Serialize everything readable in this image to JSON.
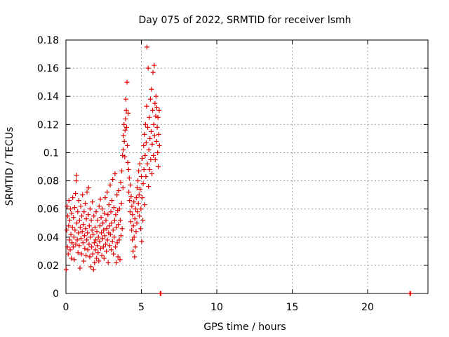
{
  "chart_data": {
    "type": "scatter",
    "title": "Day 075 of 2022, SRMTID for receiver lsmh",
    "xlabel": "GPS time / hours",
    "ylabel": "SRMTID / TECUs",
    "xlim": [
      0,
      24
    ],
    "ylim": [
      0,
      0.18
    ],
    "xticks": [
      0,
      5,
      10,
      15,
      20
    ],
    "xtick_labels": [
      "0",
      "5",
      "10",
      "15",
      "20"
    ],
    "yticks": [
      0,
      0.02,
      0.04,
      0.06,
      0.08,
      0.1,
      0.12,
      0.14,
      0.16,
      0.18
    ],
    "ytick_labels": [
      "0",
      "0.02",
      "0.04",
      "0.06",
      "0.08",
      "0.1",
      "0.12",
      "0.14",
      "0.16",
      "0.18"
    ],
    "grid": true,
    "marker": "+",
    "color": "#e00000",
    "series": [
      {
        "name": "SRMTID",
        "points": [
          [
            0.02,
            0.017
          ],
          [
            0.05,
            0.045
          ],
          [
            0.08,
            0.062
          ],
          [
            0.1,
            0.033
          ],
          [
            0.12,
            0.055
          ],
          [
            0.15,
            0.028
          ],
          [
            0.18,
            0.048
          ],
          [
            0.2,
            0.066
          ],
          [
            0.23,
            0.038
          ],
          [
            0.25,
            0.052
          ],
          [
            0.28,
            0.031
          ],
          [
            0.3,
            0.06
          ],
          [
            0.33,
            0.042
          ],
          [
            0.35,
            0.025
          ],
          [
            0.38,
            0.057
          ],
          [
            0.4,
            0.036
          ],
          [
            0.43,
            0.047
          ],
          [
            0.45,
            0.068
          ],
          [
            0.48,
            0.033
          ],
          [
            0.5,
            0.054
          ],
          [
            0.53,
            0.04
          ],
          [
            0.55,
            0.024
          ],
          [
            0.58,
            0.061
          ],
          [
            0.6,
            0.045
          ],
          [
            0.63,
            0.071
          ],
          [
            0.65,
            0.035
          ],
          [
            0.68,
            0.08
          ],
          [
            0.7,
            0.084
          ],
          [
            0.72,
            0.05
          ],
          [
            0.75,
            0.038
          ],
          [
            0.78,
            0.058
          ],
          [
            0.8,
            0.029
          ],
          [
            0.83,
            0.043
          ],
          [
            0.85,
            0.066
          ],
          [
            0.88,
            0.034
          ],
          [
            0.9,
            0.052
          ],
          [
            0.93,
            0.018
          ],
          [
            0.95,
            0.047
          ],
          [
            0.98,
            0.062
          ],
          [
            1.0,
            0.039
          ],
          [
            1.03,
            0.028
          ],
          [
            1.05,
            0.055
          ],
          [
            1.08,
            0.044
          ],
          [
            1.1,
            0.07
          ],
          [
            1.13,
            0.036
          ],
          [
            1.15,
            0.049
          ],
          [
            1.18,
            0.023
          ],
          [
            1.2,
            0.058
          ],
          [
            1.23,
            0.041
          ],
          [
            1.25,
            0.032
          ],
          [
            1.28,
            0.064
          ],
          [
            1.3,
            0.046
          ],
          [
            1.33,
            0.027
          ],
          [
            1.35,
            0.053
          ],
          [
            1.38,
            0.038
          ],
          [
            1.4,
            0.072
          ],
          [
            1.43,
            0.043
          ],
          [
            1.45,
            0.031
          ],
          [
            1.48,
            0.056
          ],
          [
            1.5,
            0.075
          ],
          [
            1.53,
            0.035
          ],
          [
            1.55,
            0.048
          ],
          [
            1.58,
            0.026
          ],
          [
            1.6,
            0.06
          ],
          [
            1.63,
            0.04
          ],
          [
            1.65,
            0.019
          ],
          [
            1.68,
            0.052
          ],
          [
            1.7,
            0.033
          ],
          [
            1.73,
            0.045
          ],
          [
            1.75,
            0.065
          ],
          [
            1.78,
            0.028
          ],
          [
            1.8,
            0.042
          ],
          [
            1.83,
            0.017
          ],
          [
            1.85,
            0.055
          ],
          [
            1.88,
            0.036
          ],
          [
            1.9,
            0.022
          ],
          [
            1.93,
            0.047
          ],
          [
            1.95,
            0.031
          ],
          [
            1.98,
            0.038
          ],
          [
            2.0,
            0.058
          ],
          [
            2.03,
            0.025
          ],
          [
            2.05,
            0.044
          ],
          [
            2.08,
            0.034
          ],
          [
            2.1,
            0.052
          ],
          [
            2.13,
            0.029
          ],
          [
            2.15,
            0.04
          ],
          [
            2.18,
            0.023
          ],
          [
            2.2,
            0.062
          ],
          [
            2.23,
            0.037
          ],
          [
            2.25,
            0.048
          ],
          [
            2.28,
            0.067
          ],
          [
            2.3,
            0.032
          ],
          [
            2.33,
            0.054
          ],
          [
            2.35,
            0.043
          ],
          [
            2.38,
            0.027
          ],
          [
            2.4,
            0.06
          ],
          [
            2.43,
            0.039
          ],
          [
            2.45,
            0.05
          ],
          [
            2.48,
            0.033
          ],
          [
            2.5,
            0.045
          ],
          [
            2.53,
            0.025
          ],
          [
            2.55,
            0.057
          ],
          [
            2.58,
            0.041
          ],
          [
            2.6,
            0.068
          ],
          [
            2.63,
            0.035
          ],
          [
            2.65,
            0.052
          ],
          [
            2.68,
            0.03
          ],
          [
            2.7,
            0.046
          ],
          [
            2.73,
            0.072
          ],
          [
            2.75,
            0.038
          ],
          [
            2.78,
            0.056
          ],
          [
            2.8,
            0.022
          ],
          [
            2.83,
            0.043
          ],
          [
            2.85,
            0.063
          ],
          [
            2.88,
            0.048
          ],
          [
            2.9,
            0.034
          ],
          [
            2.93,
            0.077
          ],
          [
            2.95,
            0.042
          ],
          [
            2.98,
            0.058
          ],
          [
            3.0,
            0.031
          ],
          [
            3.03,
            0.05
          ],
          [
            3.05,
            0.066
          ],
          [
            3.08,
            0.037
          ],
          [
            3.1,
            0.081
          ],
          [
            3.13,
            0.045
          ],
          [
            3.15,
            0.028
          ],
          [
            3.18,
            0.061
          ],
          [
            3.2,
            0.04
          ],
          [
            3.23,
            0.052
          ],
          [
            3.25,
            0.085
          ],
          [
            3.28,
            0.033
          ],
          [
            3.3,
            0.056
          ],
          [
            3.33,
            0.022
          ],
          [
            3.35,
            0.047
          ],
          [
            3.38,
            0.07
          ],
          [
            3.4,
            0.036
          ],
          [
            3.43,
            0.059
          ],
          [
            3.45,
            0.026
          ],
          [
            3.48,
            0.049
          ],
          [
            3.5,
            0.073
          ],
          [
            3.53,
            0.038
          ],
          [
            3.55,
            0.06
          ],
          [
            3.58,
            0.024
          ],
          [
            3.6,
            0.052
          ],
          [
            3.63,
            0.079
          ],
          [
            3.65,
            0.041
          ],
          [
            3.68,
            0.064
          ],
          [
            3.7,
            0.087
          ],
          [
            3.73,
            0.046
          ],
          [
            3.75,
            0.098
          ],
          [
            3.78,
            0.075
          ],
          [
            3.8,
            0.102
          ],
          [
            3.82,
            0.112
          ],
          [
            3.85,
            0.12
          ],
          [
            3.87,
            0.108
          ],
          [
            3.9,
            0.097
          ],
          [
            3.92,
            0.116
          ],
          [
            3.95,
            0.124
          ],
          [
            3.97,
            0.138
          ],
          [
            4.0,
            0.13
          ],
          [
            4.02,
            0.118
          ],
          [
            4.05,
            0.15
          ],
          [
            4.07,
            0.105
          ],
          [
            4.1,
            0.093
          ],
          [
            4.12,
            0.128
          ],
          [
            4.15,
            0.088
          ],
          [
            4.17,
            0.072
          ],
          [
            4.2,
            0.082
          ],
          [
            4.22,
            0.066
          ],
          [
            4.25,
            0.058
          ],
          [
            4.27,
            0.077
          ],
          [
            4.3,
            0.051
          ],
          [
            4.32,
            0.069
          ],
          [
            4.35,
            0.045
          ],
          [
            4.37,
            0.062
          ],
          [
            4.4,
            0.038
          ],
          [
            4.42,
            0.056
          ],
          [
            4.45,
            0.03
          ],
          [
            4.47,
            0.048
          ],
          [
            4.5,
            0.065
          ],
          [
            4.52,
            0.04
          ],
          [
            4.55,
            0.026
          ],
          [
            4.57,
            0.053
          ],
          [
            4.6,
            0.033
          ],
          [
            4.62,
            0.06
          ],
          [
            4.65,
            0.044
          ],
          [
            4.67,
            0.068
          ],
          [
            4.7,
            0.05
          ],
          [
            4.72,
            0.075
          ],
          [
            4.75,
            0.058
          ],
          [
            4.77,
            0.08
          ],
          [
            4.8,
            0.064
          ],
          [
            4.82,
            0.087
          ],
          [
            4.85,
            0.07
          ],
          [
            4.87,
            0.055
          ],
          [
            4.9,
            0.092
          ],
          [
            4.92,
            0.074
          ],
          [
            4.95,
            0.046
          ],
          [
            4.97,
            0.06
          ],
          [
            5.0,
            0.083
          ],
          [
            5.02,
            0.037
          ],
          [
            5.05,
            0.068
          ],
          [
            5.07,
            0.096
          ],
          [
            5.1,
            0.052
          ],
          [
            5.12,
            0.078
          ],
          [
            5.15,
            0.105
          ],
          [
            5.17,
            0.088
          ],
          [
            5.2,
            0.113
          ],
          [
            5.22,
            0.063
          ],
          [
            5.25,
            0.098
          ],
          [
            5.27,
            0.12
          ],
          [
            5.3,
            0.083
          ],
          [
            5.32,
            0.107
          ],
          [
            5.35,
            0.133
          ],
          [
            5.37,
            0.175
          ],
          [
            5.4,
            0.092
          ],
          [
            5.42,
            0.118
          ],
          [
            5.45,
            0.16
          ],
          [
            5.47,
            0.076
          ],
          [
            5.5,
            0.102
          ],
          [
            5.52,
            0.125
          ],
          [
            5.55,
            0.088
          ],
          [
            5.57,
            0.11
          ],
          [
            5.6,
            0.138
          ],
          [
            5.62,
            0.095
          ],
          [
            5.65,
            0.115
          ],
          [
            5.67,
            0.145
          ],
          [
            5.7,
            0.085
          ],
          [
            5.72,
            0.106
          ],
          [
            5.75,
            0.13
          ],
          [
            5.77,
            0.157
          ],
          [
            5.8,
            0.098
          ],
          [
            5.82,
            0.12
          ],
          [
            5.85,
            0.162
          ],
          [
            5.87,
            0.112
          ],
          [
            5.9,
            0.135
          ],
          [
            5.92,
            0.095
          ],
          [
            5.95,
            0.126
          ],
          [
            5.97,
            0.14
          ],
          [
            6.0,
            0.108
          ],
          [
            6.02,
            0.132
          ],
          [
            6.05,
            0.118
          ],
          [
            6.08,
            0.1
          ],
          [
            6.1,
            0.125
          ],
          [
            6.12,
            0.09
          ],
          [
            6.15,
            0.113
          ],
          [
            6.18,
            0.13
          ],
          [
            6.2,
            0.105
          ],
          [
            6.25,
            0.0
          ],
          [
            6.3,
            0.0
          ],
          [
            22.8,
            0.0
          ],
          [
            22.85,
            0.0
          ]
        ]
      }
    ]
  }
}
